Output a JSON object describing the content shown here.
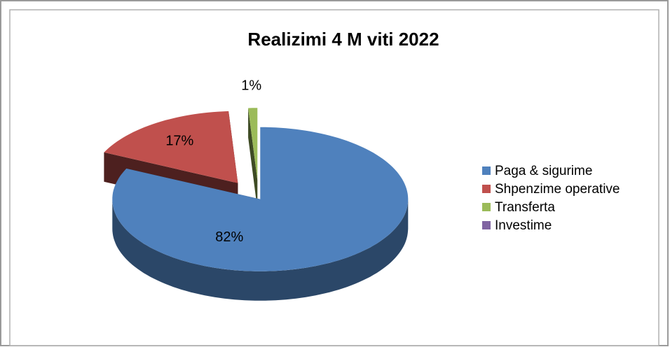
{
  "chart_data": {
    "type": "pie",
    "title": "Realizimi 4 M viti 2022",
    "categories": [
      "Paga & sigurime",
      "Shpenzime operative",
      "Transferta",
      "Investime"
    ],
    "values": [
      82,
      17,
      1,
      0
    ],
    "value_labels": [
      "82%",
      "17%",
      "1%",
      null
    ],
    "colors": [
      "#4f81bd",
      "#c0504d",
      "#9bbb59",
      "#8064a2"
    ],
    "legend": "right"
  }
}
